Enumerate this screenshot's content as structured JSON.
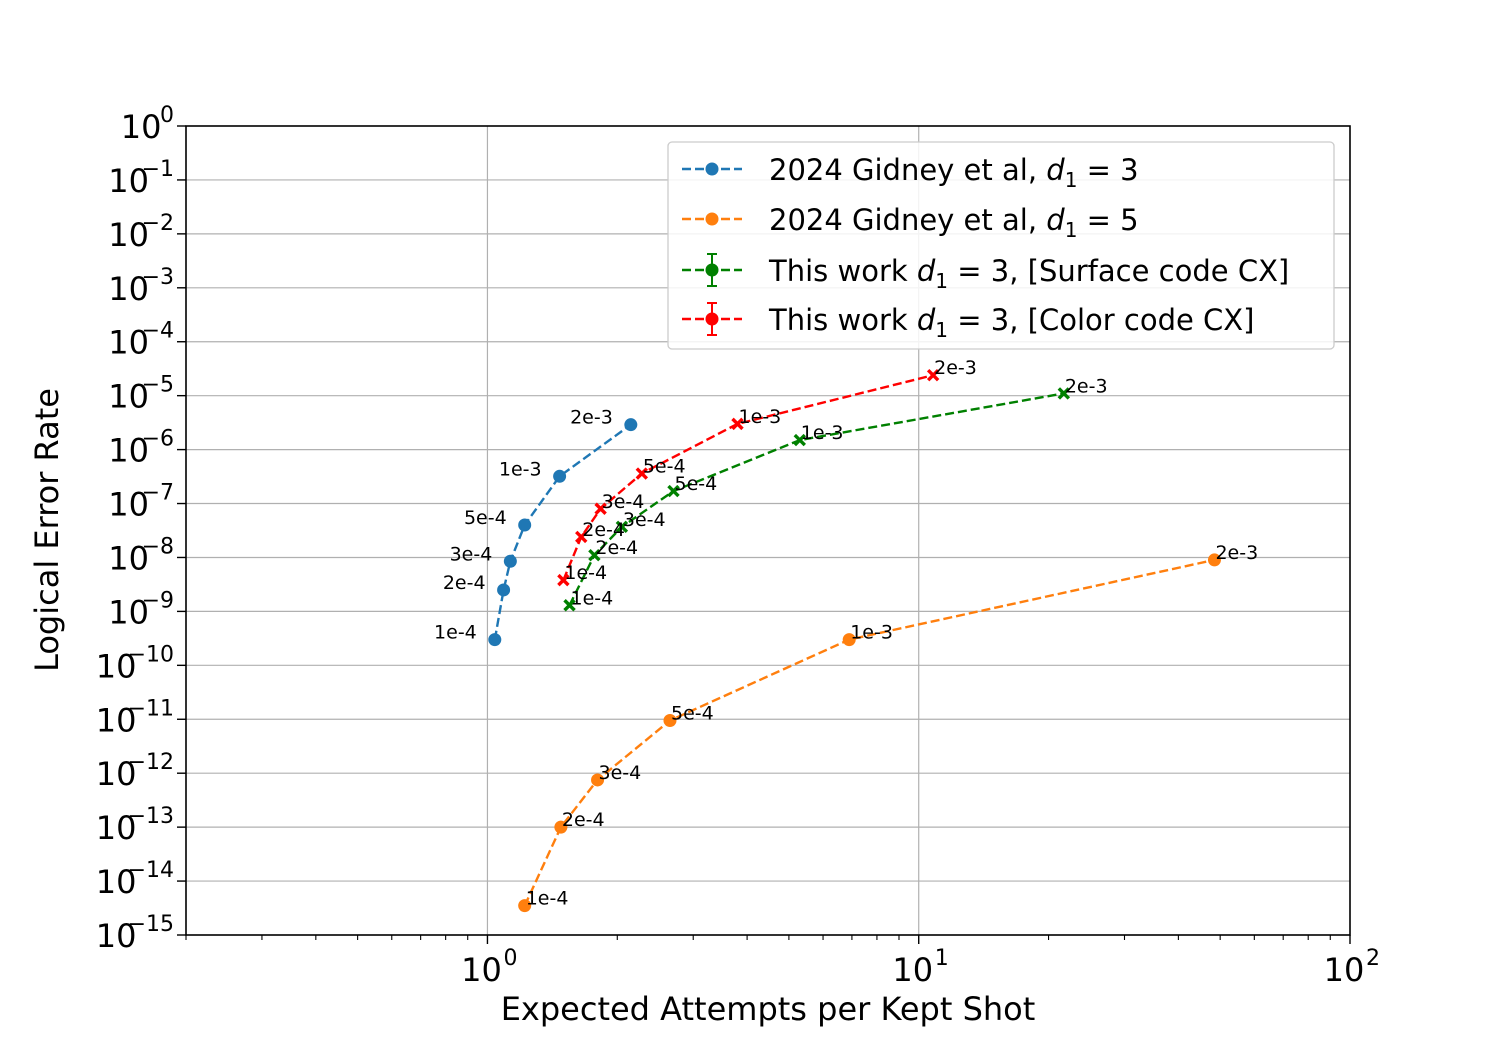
{
  "chart_data": {
    "type": "line",
    "xlabel": "Expected Attempts per Kept Shot",
    "ylabel": "Logical Error Rate",
    "xscale": "log",
    "yscale": "log",
    "xlim": [
      0.2,
      100
    ],
    "ylim": [
      1e-15,
      1
    ],
    "x_ticks": [
      {
        "value": 1,
        "base": "10",
        "exp": "0"
      },
      {
        "value": 10,
        "base": "10",
        "exp": "1"
      },
      {
        "value": 100,
        "base": "10",
        "exp": "2"
      }
    ],
    "y_ticks": [
      {
        "value": 1,
        "base": "10",
        "exp": "0"
      },
      {
        "value": 0.1,
        "base": "10",
        "exp": "−1"
      },
      {
        "value": 0.01,
        "base": "10",
        "exp": "−2"
      },
      {
        "value": 0.001,
        "base": "10",
        "exp": "−3"
      },
      {
        "value": 0.0001,
        "base": "10",
        "exp": "−4"
      },
      {
        "value": 1e-05,
        "base": "10",
        "exp": "−5"
      },
      {
        "value": 1e-06,
        "base": "10",
        "exp": "−6"
      },
      {
        "value": 1e-07,
        "base": "10",
        "exp": "−7"
      },
      {
        "value": 1e-08,
        "base": "10",
        "exp": "−8"
      },
      {
        "value": 1e-09,
        "base": "10",
        "exp": "−9"
      },
      {
        "value": 1e-10,
        "base": "10",
        "exp": "−10"
      },
      {
        "value": 1e-11,
        "base": "10",
        "exp": "−11"
      },
      {
        "value": 1e-12,
        "base": "10",
        "exp": "−12"
      },
      {
        "value": 1e-13,
        "base": "10",
        "exp": "−13"
      },
      {
        "value": 1e-14,
        "base": "10",
        "exp": "−14"
      },
      {
        "value": 1e-15,
        "base": "10",
        "exp": "−15"
      }
    ],
    "grid": true,
    "legend_position": "top-right",
    "series": [
      {
        "name": "2024 Gidney et al, d1 = 3",
        "legend_parts": {
          "prefix": "2024 Gidney et al, ",
          "var": "d",
          "sub": "1",
          "suffix": " = 3"
        },
        "color": "#1f77b4",
        "marker": "circle",
        "errorbars": false,
        "label_side": "left",
        "points": [
          {
            "x": 1.04,
            "y": 3e-10,
            "label": "1e-4"
          },
          {
            "x": 1.09,
            "y": 2.5e-09,
            "label": "2e-4"
          },
          {
            "x": 1.13,
            "y": 8.5e-09,
            "label": "3e-4"
          },
          {
            "x": 1.22,
            "y": 4e-08,
            "label": "5e-4"
          },
          {
            "x": 1.47,
            "y": 3.2e-07,
            "label": "1e-3"
          },
          {
            "x": 2.15,
            "y": 2.9e-06,
            "label": "2e-3"
          }
        ]
      },
      {
        "name": "2024 Gidney et al, d1 = 5",
        "legend_parts": {
          "prefix": "2024 Gidney et al, ",
          "var": "d",
          "sub": "1",
          "suffix": " = 5"
        },
        "color": "#ff7f0e",
        "marker": "circle",
        "errorbars": false,
        "label_side": "right",
        "points": [
          {
            "x": 1.22,
            "y": 3.5e-15,
            "label": "1e-4"
          },
          {
            "x": 1.48,
            "y": 1e-13,
            "label": "2e-4"
          },
          {
            "x": 1.8,
            "y": 7.5e-13,
            "label": "3e-4"
          },
          {
            "x": 2.65,
            "y": 9.5e-12,
            "label": "5e-4"
          },
          {
            "x": 6.9,
            "y": 3e-10,
            "label": "1e-3"
          },
          {
            "x": 48.5,
            "y": 9e-09,
            "label": "2e-3"
          }
        ]
      },
      {
        "name": "This work d1 = 3, [Surface code CX]",
        "legend_parts": {
          "prefix": "This work ",
          "var": "d",
          "sub": "1",
          "suffix": " = 3, [Surface code CX]"
        },
        "color": "#008000",
        "marker": "x",
        "errorbars": true,
        "label_side": "right",
        "points": [
          {
            "x": 1.55,
            "y": 1.3e-09,
            "label": "1e-4"
          },
          {
            "x": 1.77,
            "y": 1.1e-08,
            "label": "2e-4"
          },
          {
            "x": 2.05,
            "y": 3.7e-08,
            "label": "3e-4"
          },
          {
            "x": 2.7,
            "y": 1.7e-07,
            "label": "5e-4"
          },
          {
            "x": 5.3,
            "y": 1.5e-06,
            "label": "1e-3"
          },
          {
            "x": 21.7,
            "y": 1.1e-05,
            "label": "2e-3"
          }
        ]
      },
      {
        "name": "This work d1 = 3, [Color code CX]",
        "legend_parts": {
          "prefix": "This work ",
          "var": "d",
          "sub": "1",
          "suffix": " = 3, [Color code CX]"
        },
        "color": "#ff0000",
        "marker": "x",
        "errorbars": true,
        "label_side": "right",
        "points": [
          {
            "x": 1.5,
            "y": 3.8e-09,
            "label": "1e-4"
          },
          {
            "x": 1.65,
            "y": 2.4e-08,
            "label": "2e-4"
          },
          {
            "x": 1.83,
            "y": 8e-08,
            "label": "3e-4"
          },
          {
            "x": 2.28,
            "y": 3.6e-07,
            "label": "5e-4"
          },
          {
            "x": 3.8,
            "y": 3e-06,
            "label": "1e-3"
          },
          {
            "x": 10.8,
            "y": 2.4e-05,
            "label": "2e-3"
          }
        ]
      }
    ]
  }
}
